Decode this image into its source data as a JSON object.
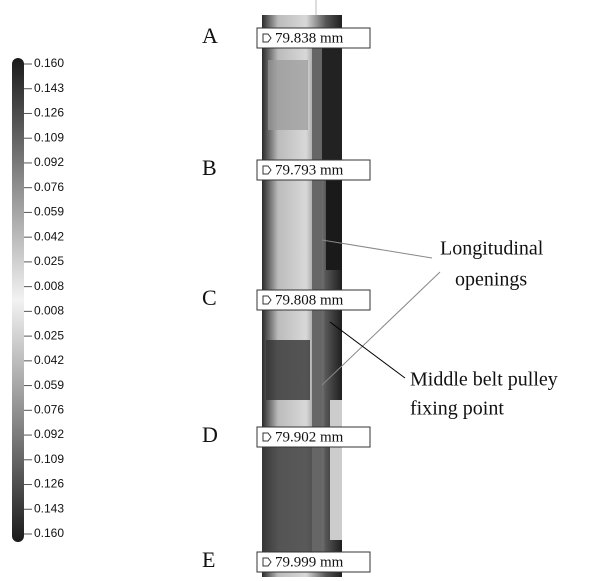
{
  "scale": {
    "labels": [
      "0.160",
      "0.143",
      "0.126",
      "0.109",
      "0.092",
      "0.076",
      "0.059",
      "0.042",
      "0.025",
      "0.008",
      "0.008",
      "0.025",
      "0.042",
      "0.059",
      "0.076",
      "0.092",
      "0.109",
      "0.126",
      "0.143",
      "0.160"
    ]
  },
  "sections": [
    {
      "letter": "A",
      "measurement": "79.838 mm"
    },
    {
      "letter": "B",
      "measurement": "79.793 mm"
    },
    {
      "letter": "C",
      "measurement": "79.808 mm"
    },
    {
      "letter": "D",
      "measurement": "79.902 mm"
    },
    {
      "letter": "E",
      "measurement": "79.999 mm"
    }
  ],
  "annotations": {
    "openings": [
      "Longitudinal",
      "openings"
    ],
    "fixing_point": [
      "Middle belt pulley",
      "fixing point"
    ]
  }
}
